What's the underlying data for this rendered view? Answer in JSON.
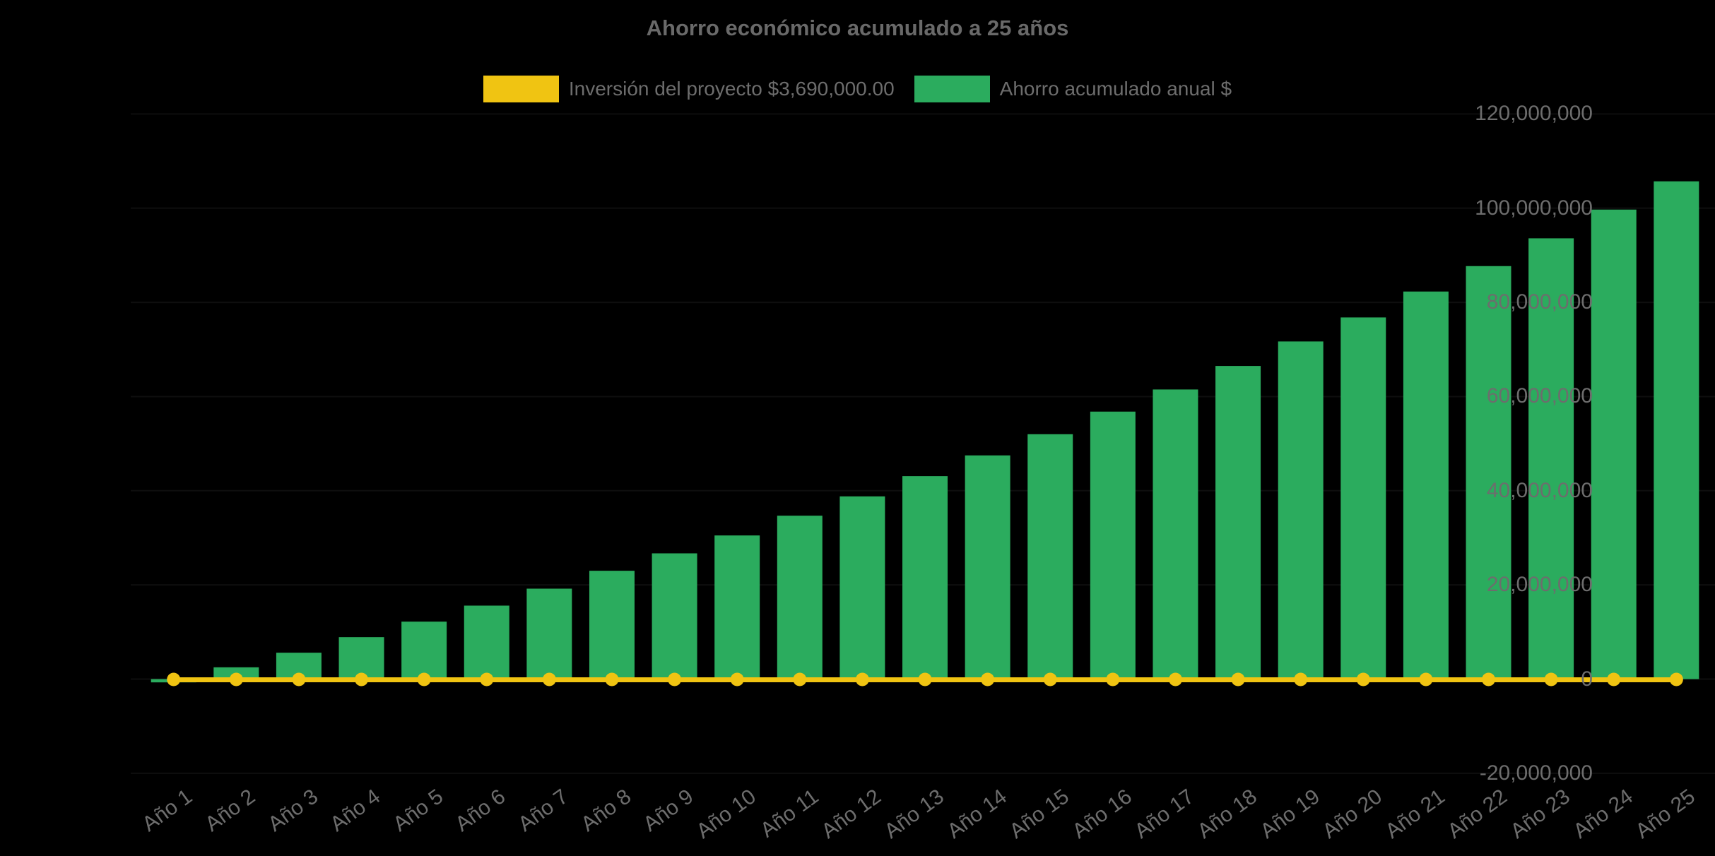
{
  "colors": {
    "background": "#000000",
    "bar_green": "#2BAC5E",
    "line_yellow": "#F0C412",
    "text_gray": "#6d6d6d",
    "title_gray": "#696969"
  },
  "chart_data": {
    "type": "bar",
    "title": "Ahorro económico acumulado a 25 años",
    "categories": [
      "Año 1",
      "Año 2",
      "Año 3",
      "Año 4",
      "Año 5",
      "Año 6",
      "Año 7",
      "Año 8",
      "Año 9",
      "Año 10",
      "Año 11",
      "Año 12",
      "Año 13",
      "Año 14",
      "Año 15",
      "Año 16",
      "Año 17",
      "Año 18",
      "Año 19",
      "Año 20",
      "Año 21",
      "Año 22",
      "Año 23",
      "Año 24",
      "Año 25"
    ],
    "series": [
      {
        "name": "Inversión del proyecto $3,690,000.00",
        "type": "line",
        "color": "#F0C412",
        "marker": "circle",
        "constant_value": 0,
        "note": "flat yellow line with round markers drawn along the zero baseline for all 25 years"
      },
      {
        "name": "Ahorro acumulado anual $",
        "type": "bar",
        "color": "#2BAC5E",
        "values": [
          -700000,
          2500000,
          5600000,
          8900000,
          12200000,
          15600000,
          19200000,
          23000000,
          26700000,
          30500000,
          34700000,
          38800000,
          43100000,
          47500000,
          52000000,
          56800000,
          61500000,
          66500000,
          71700000,
          76800000,
          82300000,
          87700000,
          93600000,
          99700000,
          105700000
        ]
      }
    ],
    "y_axis": {
      "min": -20000000,
      "max": 120000000,
      "tick_step": 20000000,
      "tick_values": [
        120000000,
        100000000,
        80000000,
        60000000,
        40000000,
        20000000,
        0,
        -20000000
      ],
      "tick_labels": [
        "120,000,000",
        "100,000,000",
        "80,000,000",
        "60,000,000",
        "40,000,000",
        "20,000,000",
        "0",
        "-20,000,000"
      ]
    },
    "x_axis": {
      "label_rotation_deg": -36
    },
    "grid": "hidden (near-black gridlines on black background)",
    "legend_position": "top-center",
    "background": "#000000"
  }
}
